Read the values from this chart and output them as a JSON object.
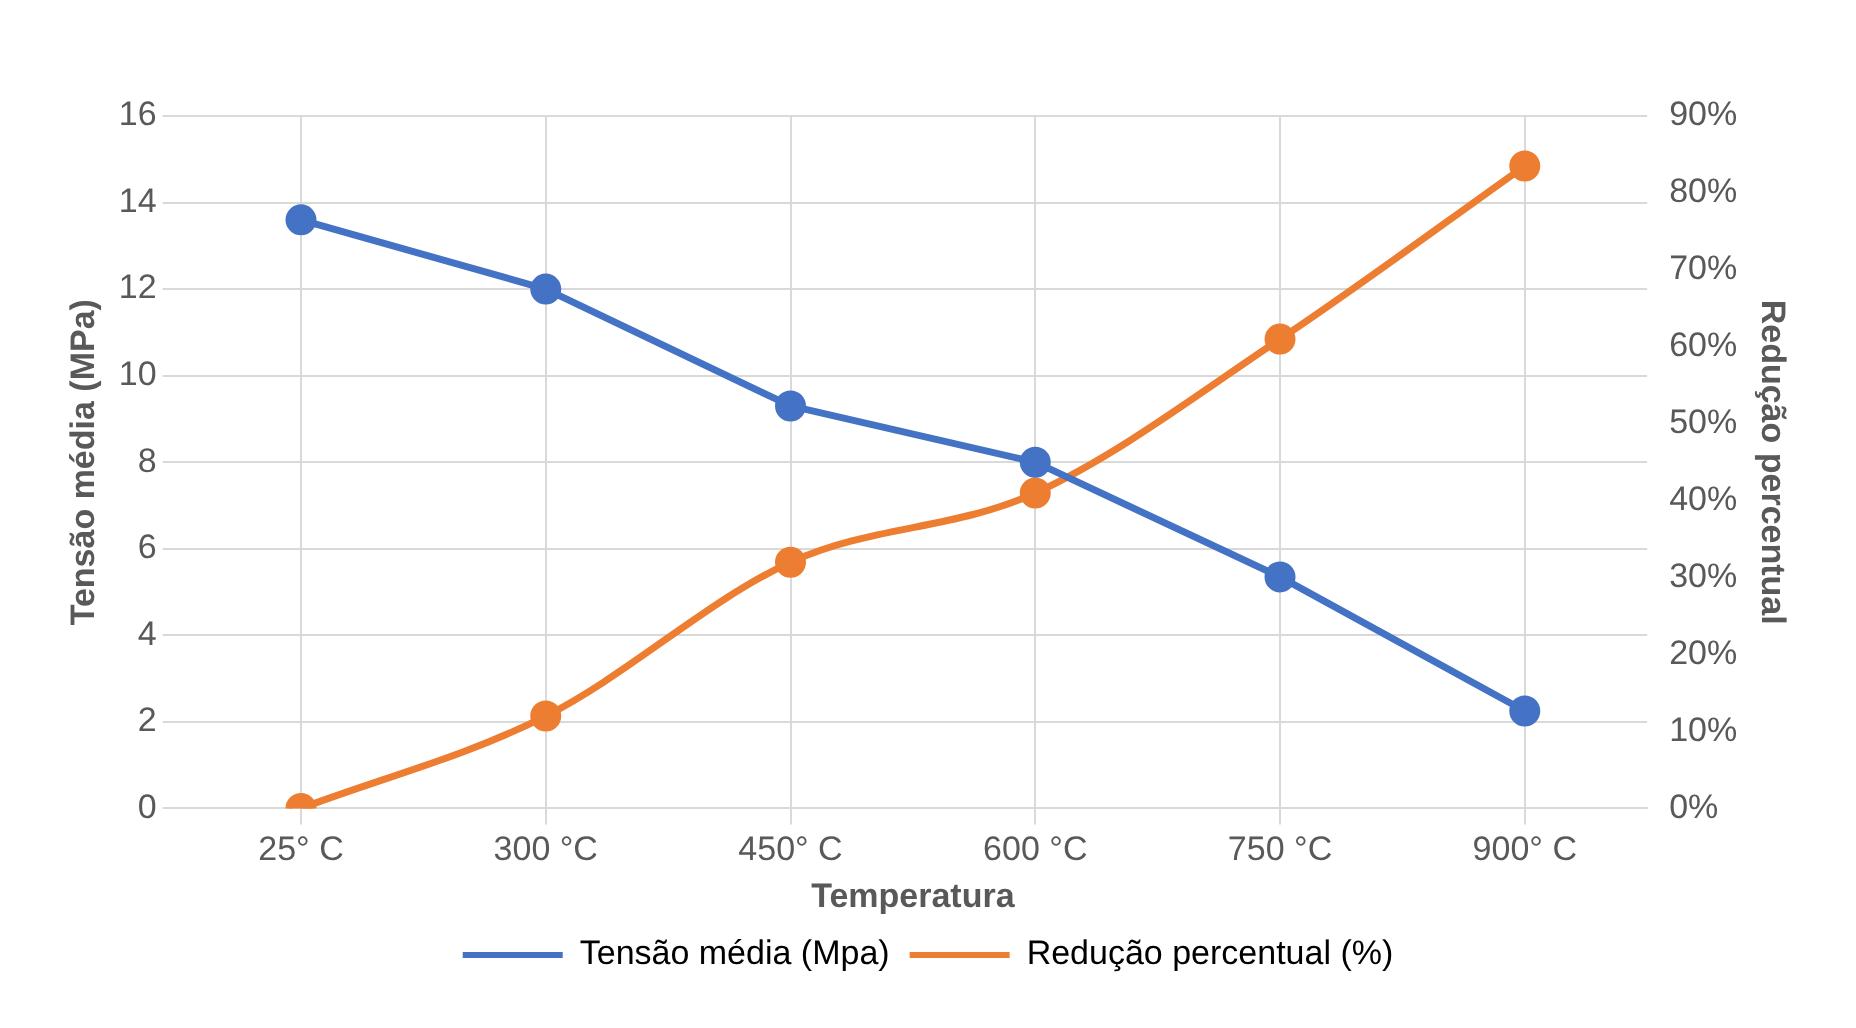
{
  "chart_data": {
    "type": "line",
    "xlabel": "Temperatura",
    "ylabel": "Tensão média (MPa)",
    "y2label": "Redução percentual",
    "categories": [
      "25° C",
      "300 °C",
      "450° C",
      "600 °C",
      "750 °C",
      "900° C"
    ],
    "series": [
      {
        "name": "Tensão média (Mpa)",
        "color": "#4472c4",
        "values": [
          13.6,
          12.0,
          9.3,
          8.0,
          5.35,
          2.25
        ]
      },
      {
        "name": "Redução percentual (%)",
        "color": "#ed7d31",
        "axis": "y2",
        "values": [
          0,
          12,
          32,
          41,
          61,
          83.5
        ]
      }
    ],
    "ylim": [
      0,
      16
    ],
    "yticks": [
      0,
      2,
      4,
      6,
      8,
      10,
      12,
      14,
      16
    ],
    "y2lim": [
      0,
      90
    ],
    "y2ticks": [
      {
        "value": 0,
        "label": "0%"
      },
      {
        "value": 10,
        "label": "10%"
      },
      {
        "value": 20,
        "label": "20%"
      },
      {
        "value": 30,
        "label": "30%"
      },
      {
        "value": 40,
        "label": "40%"
      },
      {
        "value": 50,
        "label": "50%"
      },
      {
        "value": 60,
        "label": "60%"
      },
      {
        "value": 70,
        "label": "70%"
      },
      {
        "value": 80,
        "label": "80%"
      },
      {
        "value": 90,
        "label": "90%"
      }
    ],
    "grid": true,
    "legend": "bottom",
    "marker": "circle",
    "line_style": "solid"
  }
}
